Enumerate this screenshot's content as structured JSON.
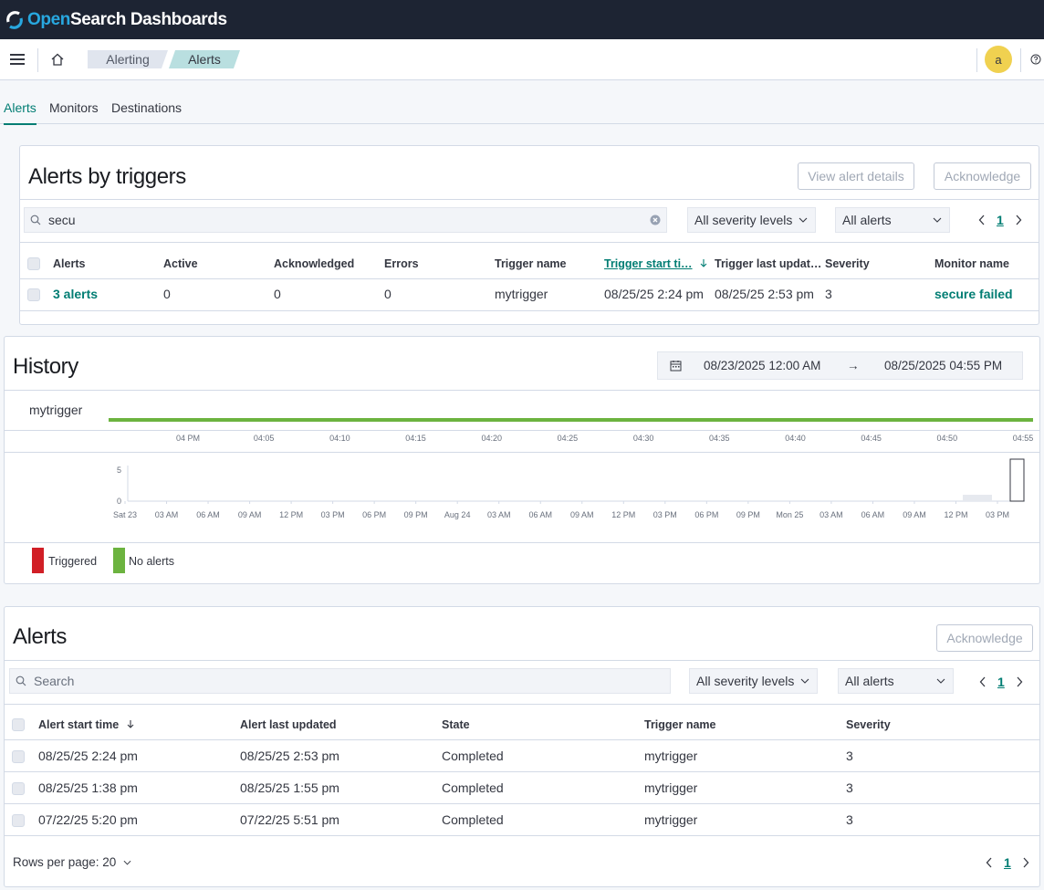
{
  "app": {
    "brand_open": "Open",
    "brand_rest": "Search Dashboards"
  },
  "breadcrumbs": [
    "Alerting",
    "Alerts"
  ],
  "user": {
    "avatar_letter": "a"
  },
  "tabs": [
    "Alerts",
    "Monitors",
    "Destinations"
  ],
  "triggers_panel": {
    "title": "Alerts by triggers",
    "view_button": "View alert details",
    "ack_button": "Acknowledge",
    "search_value": "secu",
    "severity_filter": "All severity levels",
    "state_filter": "All alerts",
    "page": "1",
    "columns": [
      "Alerts",
      "Active",
      "Acknowledged",
      "Errors",
      "Trigger name",
      "Trigger start ti…",
      "Trigger last updat…",
      "Severity",
      "Monitor name"
    ],
    "row": {
      "alerts": "3 alerts",
      "active": "0",
      "acknowledged": "0",
      "errors": "0",
      "trigger_name": "mytrigger",
      "start": "08/25/25 2:24 pm",
      "last_updated": "08/25/25 2:53 pm",
      "severity": "3",
      "monitor": "secure failed"
    }
  },
  "history_panel": {
    "title": "History",
    "date_start": "08/23/2025 12:00 AM",
    "date_arrow": "→",
    "date_end": "08/25/2025 04:55 PM",
    "timeline_label": "mytrigger",
    "timeline_ticks": [
      "04 PM",
      "04:05",
      "04:10",
      "04:15",
      "04:20",
      "04:25",
      "04:30",
      "04:35",
      "04:40",
      "04:45",
      "04:50",
      "04:55"
    ],
    "legend": [
      {
        "label": "Triggered",
        "color": "#d11f26"
      },
      {
        "label": "No alerts",
        "color": "#6cb33f"
      }
    ]
  },
  "chart_data": {
    "type": "bar",
    "ylim": [
      0,
      5
    ],
    "y_ticks": [
      "5",
      "0"
    ],
    "categories": [
      "Sat 23",
      "03 AM",
      "06 AM",
      "09 AM",
      "12 PM",
      "03 PM",
      "06 PM",
      "09 PM",
      "Aug 24",
      "03 AM",
      "06 AM",
      "09 AM",
      "12 PM",
      "03 PM",
      "06 PM",
      "09 PM",
      "Mon 25",
      "03 AM",
      "06 AM",
      "09 AM",
      "12 PM",
      "03 PM"
    ],
    "series": [
      {
        "values": [
          0,
          0,
          0,
          0,
          0,
          0,
          0,
          0,
          0,
          0,
          0,
          0,
          0,
          0,
          0,
          0,
          0,
          0,
          0,
          0,
          0,
          0
        ]
      }
    ]
  },
  "alerts_panel": {
    "title": "Alerts",
    "ack_button": "Acknowledge",
    "search_placeholder": "Search",
    "severity_filter": "All severity levels",
    "state_filter": "All alerts",
    "page": "1",
    "columns": [
      "Alert start time",
      "Alert last updated",
      "State",
      "Trigger name",
      "Severity"
    ],
    "rows": [
      {
        "start": "08/25/25 2:24 pm",
        "updated": "08/25/25 2:53 pm",
        "state": "Completed",
        "trigger": "mytrigger",
        "severity": "3"
      },
      {
        "start": "08/25/25 1:38 pm",
        "updated": "08/25/25 1:55 pm",
        "state": "Completed",
        "trigger": "mytrigger",
        "severity": "3"
      },
      {
        "start": "07/22/25 5:20 pm",
        "updated": "07/22/25 5:51 pm",
        "state": "Completed",
        "trigger": "mytrigger",
        "severity": "3"
      }
    ],
    "rows_per_page": "Rows per page: 20",
    "footer_page": "1"
  }
}
